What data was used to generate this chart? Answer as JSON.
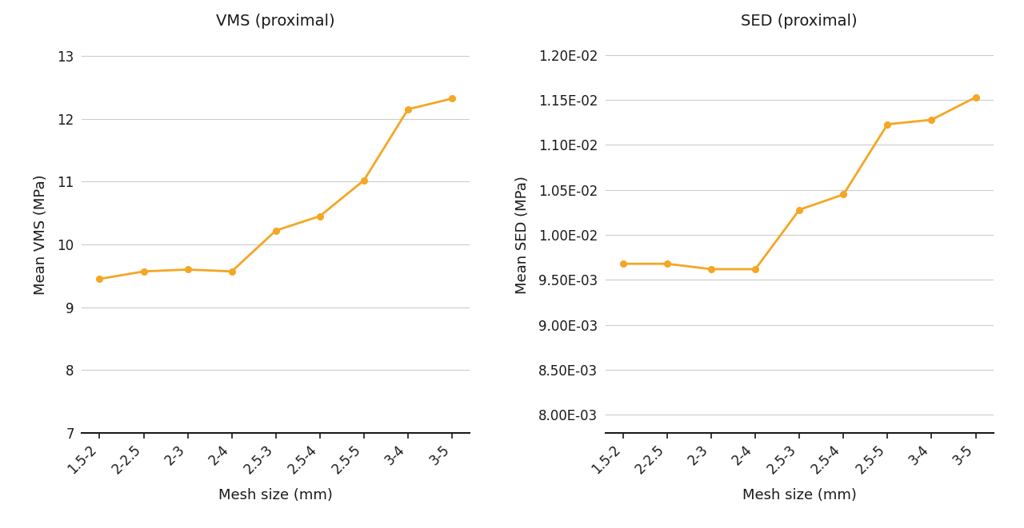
{
  "categories": [
    "1.5-2",
    "2-2.5",
    "2-3",
    "2-4",
    "2.5-3",
    "2.5-4",
    "2.5-5",
    "3-4",
    "3-5"
  ],
  "vms_values": [
    9.45,
    9.57,
    9.6,
    9.57,
    10.22,
    10.45,
    11.02,
    12.15,
    12.32
  ],
  "sed_values": [
    0.00968,
    0.00968,
    0.00962,
    0.00962,
    0.01028,
    0.01045,
    0.01123,
    0.01128,
    0.01153
  ],
  "line_color": "#F5A623",
  "marker_color": "#F5A623",
  "vms_title": "VMS (proximal)",
  "sed_title": "SED (proximal)",
  "vms_ylabel": "Mean VMS (MPa)",
  "sed_ylabel": "Mean SED (MPa)",
  "xlabel": "Mesh size (mm)",
  "vms_yticks": [
    7,
    8,
    9,
    10,
    11,
    12,
    13
  ],
  "vms_ylim": [
    7,
    13.3
  ],
  "sed_yticks": [
    0.008,
    0.0085,
    0.009,
    0.0095,
    0.01,
    0.0105,
    0.011,
    0.0115,
    0.012
  ],
  "sed_ylim": [
    0.0078,
    0.0122
  ],
  "background_color": "#ffffff",
  "grid_color": "#cccccc",
  "text_color": "#1a1a1a",
  "spine_color": "#1a1a1a"
}
